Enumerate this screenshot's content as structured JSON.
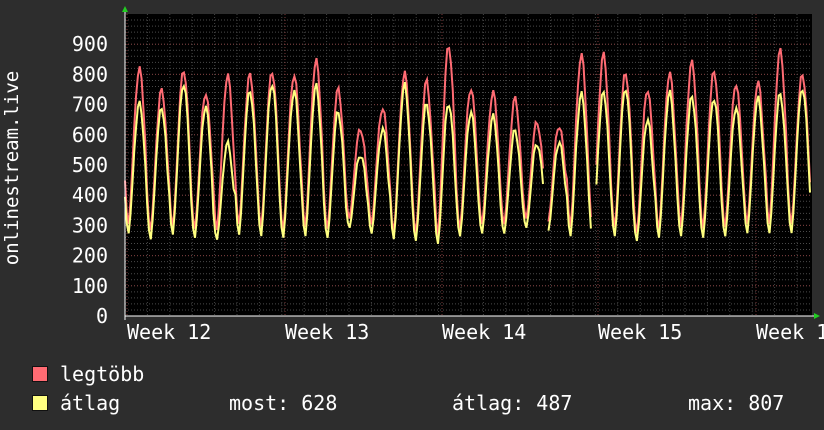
{
  "chart_data": {
    "type": "line",
    "ylabel": "onlinestream.live",
    "ylim": [
      0,
      1000
    ],
    "yticks": [
      0,
      100,
      200,
      300,
      400,
      500,
      600,
      700,
      800,
      900
    ],
    "xticks": [
      "Week 12",
      "Week 13",
      "Week 14",
      "Week 15",
      "Week 1"
    ],
    "grid": true,
    "series": [
      {
        "name": "legtöbb",
        "color": "#ff6b73",
        "daily_peaks": [
          825,
          750,
          810,
          735,
          800,
          805,
          810,
          795,
          845,
          755,
          625,
          690,
          800,
          775,
          900,
          760,
          740,
          715,
          640,
          635,
          870,
          865,
          800,
          750,
          810,
          845,
          810,
          765,
          775,
          885,
          805
        ],
        "daily_troughs": [
          300,
          280,
          290,
          285,
          280,
          300,
          290,
          280,
          290,
          285,
          320,
          300,
          270,
          270,
          260,
          285,
          300,
          300,
          320,
          310,
          290,
          280,
          290,
          270,
          280,
          290,
          285,
          290,
          300,
          300,
          300
        ]
      },
      {
        "name": "átlag",
        "color": "#ffff80",
        "daily_peaks": [
          710,
          690,
          765,
          690,
          575,
          750,
          770,
          740,
          760,
          680,
          540,
          620,
          760,
          700,
          710,
          680,
          660,
          610,
          570,
          580,
          740,
          740,
          750,
          650,
          745,
          730,
          720,
          685,
          720,
          740,
          760
        ],
        "daily_troughs": [
          270,
          250,
          265,
          255,
          250,
          265,
          260,
          255,
          260,
          255,
          290,
          270,
          250,
          245,
          235,
          260,
          270,
          270,
          290,
          280,
          260,
          250,
          260,
          245,
          255,
          260,
          255,
          260,
          270,
          270,
          270
        ]
      }
    ],
    "gaps": [
      "between Week 14 and Week 15"
    ]
  },
  "legend": {
    "max_label": "legtöbb",
    "avg_label": "átlag",
    "max_color": "#ff6b73",
    "avg_color": "#ffff80"
  },
  "stats": {
    "current": "most: 628",
    "average": "átlag: 487",
    "maximum": "max: 807"
  }
}
